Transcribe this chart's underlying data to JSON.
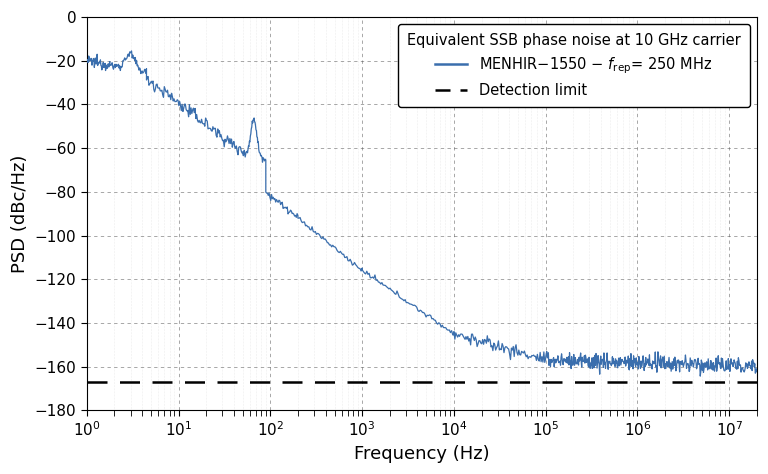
{
  "xlabel": "Frequency (Hz)",
  "ylabel": "PSD (dBc/Hz)",
  "xlim": [
    1,
    20000000.0
  ],
  "ylim": [
    -180,
    0
  ],
  "yticks": [
    0,
    -20,
    -40,
    -60,
    -80,
    -100,
    -120,
    -140,
    -160,
    -180
  ],
  "legend_title": "Equivalent SSB phase noise at 10 GHz carrier",
  "legend_label1": "MENHIR−1550 − $f_{rep}$= 250 MHz",
  "legend_label2": "Detection limit",
  "line_color": "#3a6ead",
  "dashed_color": "#000000",
  "background_color": "#ffffff",
  "detection_limit_y": -167.0,
  "detection_limit_x_start": 1.0
}
